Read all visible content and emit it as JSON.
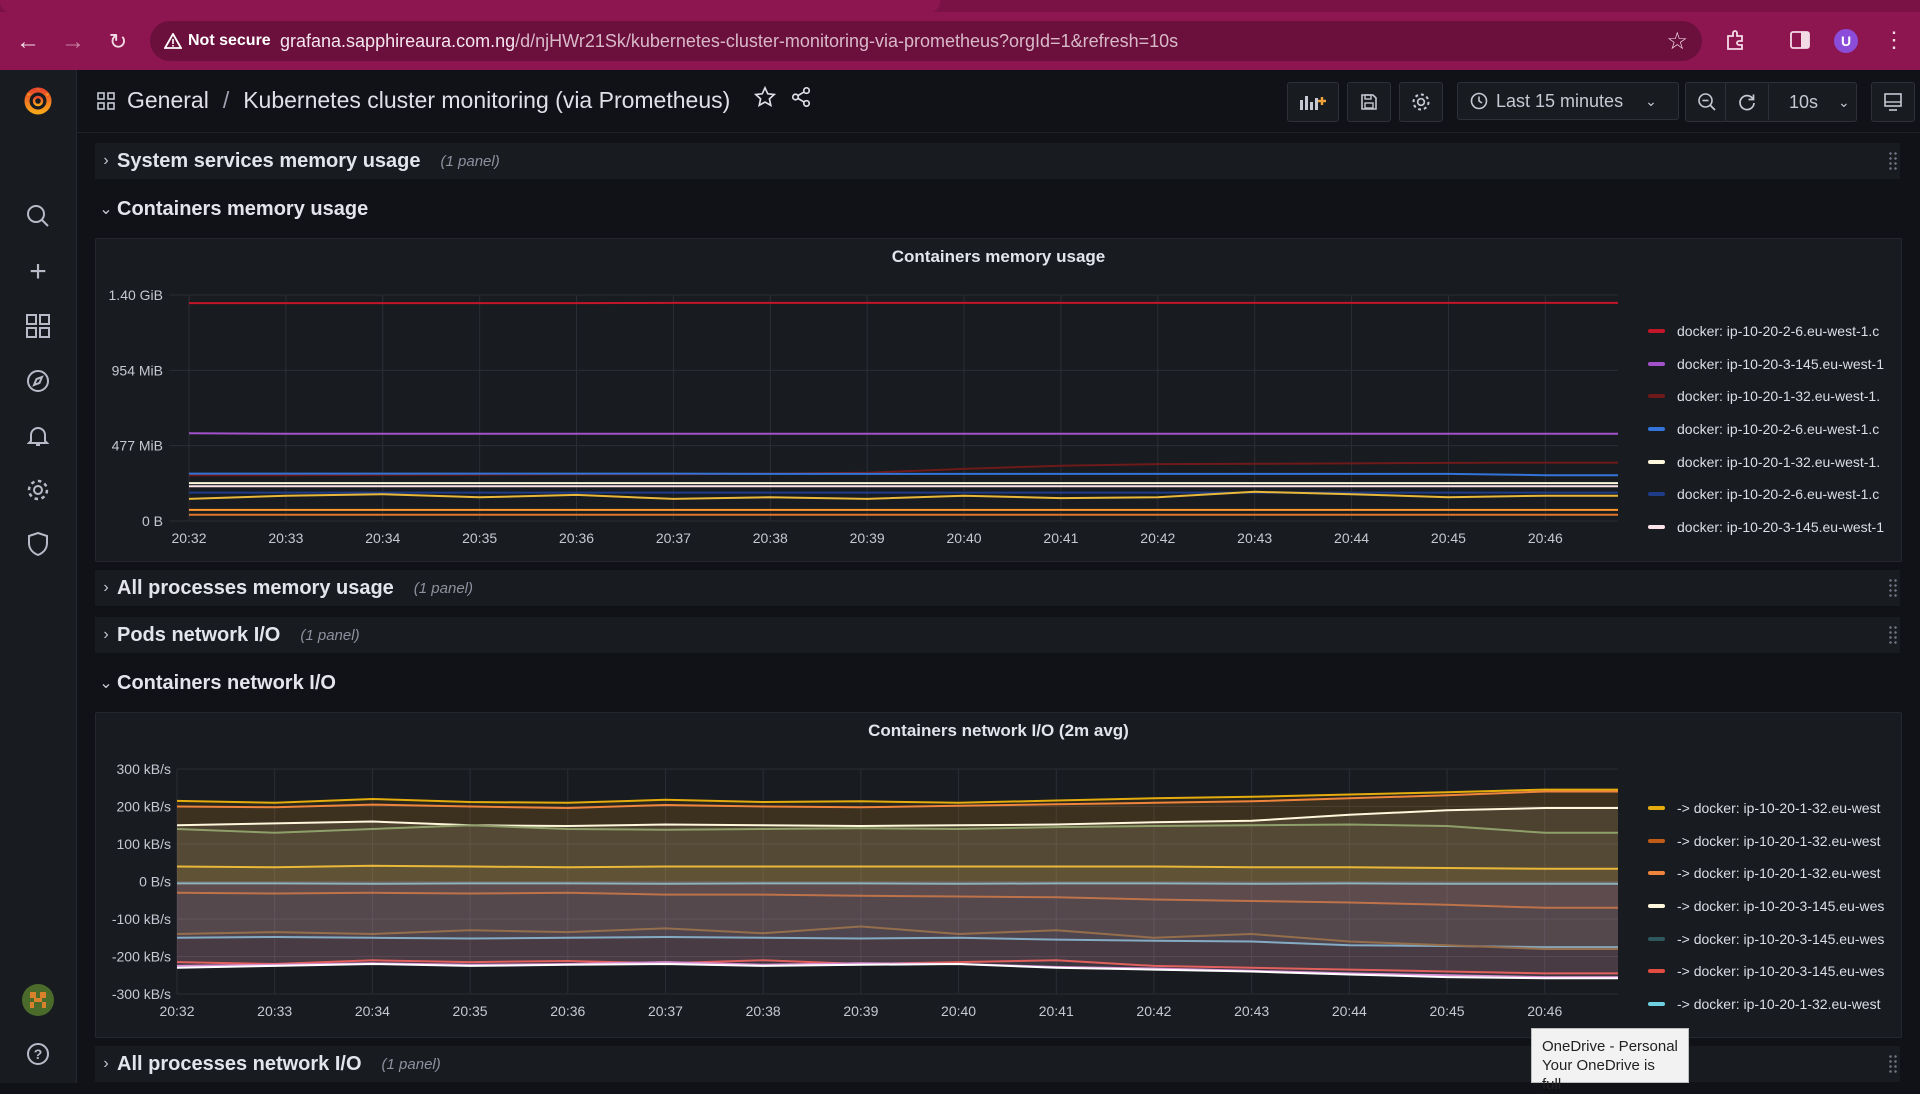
{
  "browser": {
    "security_label": "Not secure",
    "url_host": "grafana.sapphireaura.com.ng",
    "url_path": "/d/njHWr21Sk/kubernetes-cluster-monitoring-via-prometheus?orgId=1&refresh=10s",
    "profile_initial": "U",
    "theme_color": "#8e1650"
  },
  "header": {
    "breadcrumb_root": "General",
    "separator": "/",
    "dashboard_title": "Kubernetes cluster monitoring (via Prometheus)",
    "time_range": "Last 15 minutes",
    "refresh_interval": "10s"
  },
  "rows": {
    "system_services": {
      "title": "System services memory usage",
      "count": "(1 panel)"
    },
    "containers_memory": {
      "title": "Containers memory usage"
    },
    "all_processes_memory": {
      "title": "All processes memory usage",
      "count": "(1 panel)"
    },
    "pods_network": {
      "title": "Pods network I/O",
      "count": "(1 panel)"
    },
    "containers_network": {
      "title": "Containers network I/O"
    },
    "all_processes_network": {
      "title": "All processes network I/O",
      "count": "(1 panel)"
    }
  },
  "toast": {
    "line1": "OneDrive - Personal",
    "line2": "Your OneDrive is full"
  },
  "chart_data": [
    {
      "type": "line",
      "title": "Containers memory usage",
      "x": [
        "20:32",
        "20:33",
        "20:34",
        "20:35",
        "20:36",
        "20:37",
        "20:38",
        "20:39",
        "20:40",
        "20:41",
        "20:42",
        "20:43",
        "20:44",
        "20:45",
        "20:46"
      ],
      "y_ticks": [
        "0 B",
        "477 MiB",
        "954 MiB",
        "1.40 GiB"
      ],
      "ylim": [
        0,
        1431
      ],
      "y_unit": "MiB",
      "grid": true,
      "legend_position": "right",
      "legend": [
        {
          "label": "docker: ip-10-20-2-6.eu-west-1.c",
          "color": "#c4162a"
        },
        {
          "label": "docker: ip-10-20-3-145.eu-west-1",
          "color": "#a352cc"
        },
        {
          "label": "docker: ip-10-20-1-32.eu-west-1.",
          "color": "#6e1a1a"
        },
        {
          "label": "docker: ip-10-20-2-6.eu-west-1.c",
          "color": "#3274d9"
        },
        {
          "label": "docker: ip-10-20-1-32.eu-west-1.",
          "color": "#fff8dc"
        },
        {
          "label": "docker: ip-10-20-2-6.eu-west-1.c",
          "color": "#1f3c88"
        },
        {
          "label": "docker: ip-10-20-3-145.eu-west-1",
          "color": "#fbe3ea"
        }
      ],
      "series": [
        {
          "color": "#c4162a",
          "values": [
            1380,
            1380,
            1380,
            1380,
            1380,
            1381,
            1381,
            1381,
            1381,
            1381,
            1381,
            1381,
            1381,
            1381,
            1381
          ]
        },
        {
          "color": "#a352cc",
          "values": [
            555,
            553,
            553,
            553,
            552,
            552,
            552,
            552,
            553,
            553,
            553,
            553,
            553,
            553,
            553
          ]
        },
        {
          "color": "#6e1a1a",
          "values": [
            290,
            290,
            292,
            294,
            296,
            296,
            300,
            305,
            330,
            350,
            360,
            362,
            365,
            368,
            370
          ]
        },
        {
          "color": "#3274d9",
          "values": [
            300,
            300,
            300,
            300,
            300,
            300,
            298,
            298,
            298,
            298,
            298,
            298,
            298,
            298,
            290
          ]
        },
        {
          "color": "#fff8dc",
          "values": [
            240,
            240,
            240,
            240,
            240,
            240,
            240,
            240,
            240,
            240,
            240,
            240,
            240,
            240,
            240
          ]
        },
        {
          "color": "#1f3c88",
          "values": [
            180,
            180,
            180,
            180,
            180,
            180,
            180,
            180,
            180,
            180,
            180,
            180,
            180,
            180,
            180
          ]
        },
        {
          "color": "#fbe3ea",
          "values": [
            220,
            220,
            220,
            220,
            220,
            220,
            220,
            220,
            220,
            220,
            220,
            220,
            220,
            220,
            220
          ]
        },
        {
          "color": "#eab839",
          "values": [
            140,
            160,
            170,
            150,
            165,
            140,
            150,
            140,
            160,
            145,
            150,
            185,
            170,
            150,
            160
          ]
        },
        {
          "color": "#e0752d",
          "values": [
            40,
            40,
            40,
            40,
            40,
            40,
            40,
            40,
            40,
            40,
            40,
            40,
            40,
            40,
            40
          ]
        },
        {
          "color": "#ff9830",
          "values": [
            70,
            70,
            70,
            70,
            70,
            70,
            70,
            70,
            70,
            70,
            70,
            70,
            70,
            70,
            70
          ]
        }
      ]
    },
    {
      "type": "area",
      "title": "Containers network I/O (2m avg)",
      "x": [
        "20:32",
        "20:33",
        "20:34",
        "20:35",
        "20:36",
        "20:37",
        "20:38",
        "20:39",
        "20:40",
        "20:41",
        "20:42",
        "20:43",
        "20:44",
        "20:45",
        "20:46"
      ],
      "y_ticks": [
        "-300 kB/s",
        "-200 kB/s",
        "-100 kB/s",
        "0 B/s",
        "100 kB/s",
        "200 kB/s",
        "300 kB/s"
      ],
      "ylim": [
        -300,
        300
      ],
      "y_unit": "kB/s",
      "grid": true,
      "legend_position": "right",
      "legend": [
        {
          "label": "-> docker: ip-10-20-1-32.eu-west",
          "color": "#e5ac0e"
        },
        {
          "label": "-> docker: ip-10-20-1-32.eu-west",
          "color": "#c15c17"
        },
        {
          "label": "-> docker: ip-10-20-1-32.eu-west",
          "color": "#ef843c"
        },
        {
          "label": "-> docker: ip-10-20-3-145.eu-wes",
          "color": "#fff8dc"
        },
        {
          "label": "-> docker: ip-10-20-3-145.eu-wes",
          "color": "#2f575e"
        },
        {
          "label": "-> docker: ip-10-20-3-145.eu-wes",
          "color": "#e24d42"
        },
        {
          "label": "-> docker: ip-10-20-1-32.eu-west",
          "color": "#6ed0e0"
        }
      ],
      "series": [
        {
          "color": "#e5ac0e",
          "values": [
            215,
            210,
            220,
            212,
            210,
            218,
            212,
            214,
            210,
            216,
            222,
            226,
            232,
            238,
            245
          ]
        },
        {
          "color": "#ef843c",
          "values": [
            200,
            198,
            205,
            200,
            196,
            204,
            200,
            198,
            202,
            206,
            210,
            214,
            222,
            230,
            240
          ]
        },
        {
          "color": "#fff8dc",
          "values": [
            150,
            155,
            160,
            150,
            148,
            152,
            150,
            148,
            150,
            152,
            158,
            162,
            178,
            190,
            196
          ]
        },
        {
          "color": "#8f9f6a",
          "values": [
            140,
            130,
            140,
            150,
            140,
            138,
            140,
            142,
            140,
            145,
            148,
            150,
            152,
            148,
            130
          ]
        },
        {
          "color": "#eab839",
          "values": [
            40,
            38,
            42,
            40,
            38,
            40,
            40,
            40,
            40,
            40,
            40,
            38,
            38,
            36,
            34
          ]
        },
        {
          "color": "#6ed0e0",
          "values": [
            -5,
            -5,
            -6,
            -5,
            -5,
            -6,
            -5,
            -5,
            -6,
            -5,
            -5,
            -6,
            -5,
            -6,
            -6
          ]
        },
        {
          "color": "#c15c17",
          "values": [
            -30,
            -32,
            -30,
            -32,
            -30,
            -35,
            -35,
            -38,
            -40,
            -42,
            -48,
            -52,
            -56,
            -62,
            -70
          ]
        },
        {
          "color": "#64b0c8",
          "values": [
            -150,
            -148,
            -150,
            -152,
            -150,
            -148,
            -150,
            -152,
            -150,
            -155,
            -158,
            -160,
            -170,
            -172,
            -175
          ]
        },
        {
          "color": "#7c5f2a",
          "values": [
            -140,
            -135,
            -140,
            -130,
            -135,
            -125,
            -138,
            -120,
            -140,
            -130,
            -150,
            -140,
            -160,
            -170,
            -180
          ]
        },
        {
          "color": "#e24d42",
          "values": [
            -215,
            -220,
            -210,
            -215,
            -212,
            -218,
            -210,
            -220,
            -215,
            -210,
            -225,
            -230,
            -235,
            -240,
            -245
          ]
        },
        {
          "color": "#d683ce",
          "values": [
            -225,
            -222,
            -218,
            -222,
            -220,
            -215,
            -222,
            -218,
            -220,
            -228,
            -232,
            -238,
            -245,
            -250,
            -255
          ]
        },
        {
          "color": "#ffffff",
          "values": [
            -230,
            -225,
            -220,
            -225,
            -222,
            -220,
            -225,
            -222,
            -220,
            -230,
            -235,
            -240,
            -248,
            -255,
            -258
          ]
        }
      ]
    }
  ]
}
